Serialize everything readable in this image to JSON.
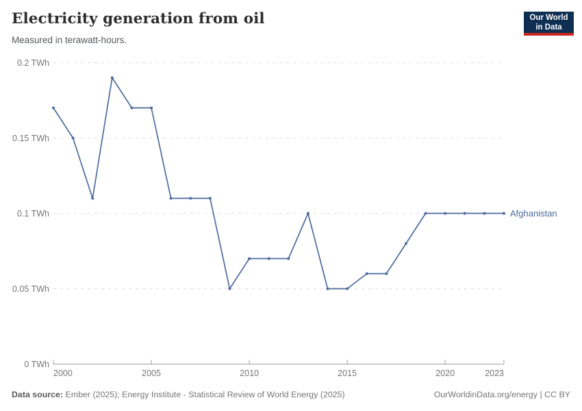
{
  "header": {
    "title": "Electricity generation from oil",
    "subtitle": "Measured in terawatt-hours."
  },
  "logo": {
    "line1": "Our World",
    "line2": "in Data"
  },
  "chart_data": {
    "type": "line",
    "title": "Electricity generation from oil",
    "subtitle": "Measured in terawatt-hours.",
    "unit": "TWh",
    "x": [
      2000,
      2001,
      2002,
      2003,
      2004,
      2005,
      2006,
      2007,
      2008,
      2009,
      2010,
      2011,
      2012,
      2013,
      2014,
      2015,
      2016,
      2017,
      2018,
      2019,
      2020,
      2021,
      2022,
      2023
    ],
    "series": [
      {
        "name": "Afghanistan",
        "values": [
          0.17,
          0.15,
          0.11,
          0.19,
          0.17,
          0.17,
          0.11,
          0.11,
          0.11,
          0.05,
          0.07,
          0.07,
          0.07,
          0.1,
          0.05,
          0.05,
          0.06,
          0.06,
          0.08,
          0.1,
          0.1,
          0.1,
          0.1,
          0.1
        ]
      }
    ],
    "x_ticks": [
      2000,
      2005,
      2010,
      2015,
      2020,
      2023
    ],
    "x_tick_labels": [
      "2000",
      "2005",
      "2010",
      "2015",
      "2020",
      "2023"
    ],
    "y_ticks": [
      0,
      0.05,
      0.1,
      0.15,
      0.2
    ],
    "y_tick_labels": [
      "0 TWh",
      "0.05 TWh",
      "0.1 TWh",
      "0.15 TWh",
      "0.2 TWh"
    ],
    "xlim": [
      2000,
      2023
    ],
    "ylim": [
      0,
      0.2
    ],
    "grid": true,
    "legend_position": "end-of-line"
  },
  "footer": {
    "source_label": "Data source:",
    "source_text": " Ember (2025); Energy Institute - Statistical Review of World Energy (2025)",
    "credit": "OurWorldinData.org/energy | CC BY"
  },
  "colors": {
    "series_line": "#4C6A9C",
    "grid": "#DCDCDC",
    "axis": "#9E9E9E",
    "tick_label": "#747474",
    "entity_label": "#4C6A9C",
    "logo_bg": "#0E2E52",
    "logo_accent": "#C5291F"
  }
}
